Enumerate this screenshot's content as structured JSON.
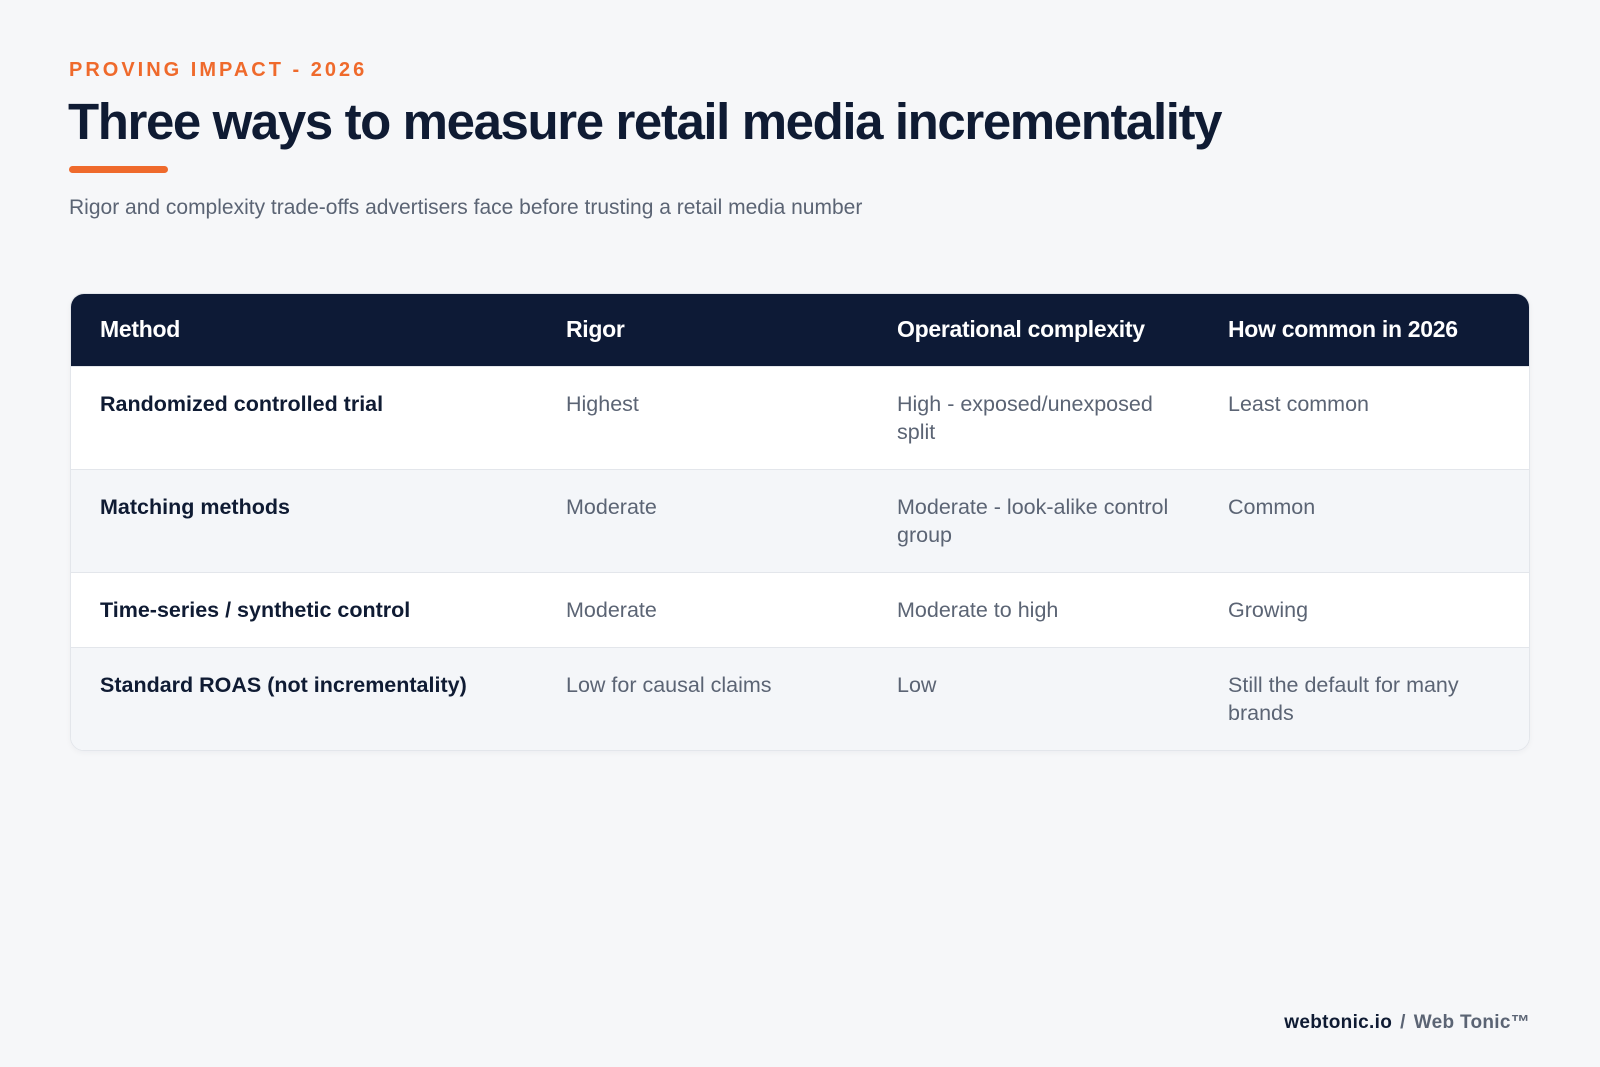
{
  "header": {
    "eyebrow": "PROVING IMPACT - 2026",
    "title": "Three ways to measure retail media incrementality",
    "subtitle": "Rigor and complexity trade-offs advertisers face before trusting a retail media number"
  },
  "colors": {
    "accent": "#ef6a2c",
    "header_bg": "#0d1a36",
    "text_dark": "#0f1b33",
    "text_muted": "#5b6474",
    "page_bg": "#f6f7f9"
  },
  "table": {
    "columns": [
      "Method",
      "Rigor",
      "Operational complexity",
      "How common in 2026"
    ],
    "rows": [
      {
        "method": "Randomized controlled trial",
        "rigor": "Highest",
        "complexity": "High - exposed/unexposed split",
        "common": "Least common"
      },
      {
        "method": "Matching methods",
        "rigor": "Moderate",
        "complexity": "Moderate - look-alike control group",
        "common": "Common"
      },
      {
        "method": "Time-series / synthetic control",
        "rigor": "Moderate",
        "complexity": "Moderate to high",
        "common": "Growing"
      },
      {
        "method": "Standard ROAS (not incrementality)",
        "rigor": "Low for causal claims",
        "complexity": "Low",
        "common": "Still the default for many brands"
      }
    ]
  },
  "footer": {
    "site": "webtonic.io",
    "separator": "/",
    "brand": "Web Tonic™"
  }
}
